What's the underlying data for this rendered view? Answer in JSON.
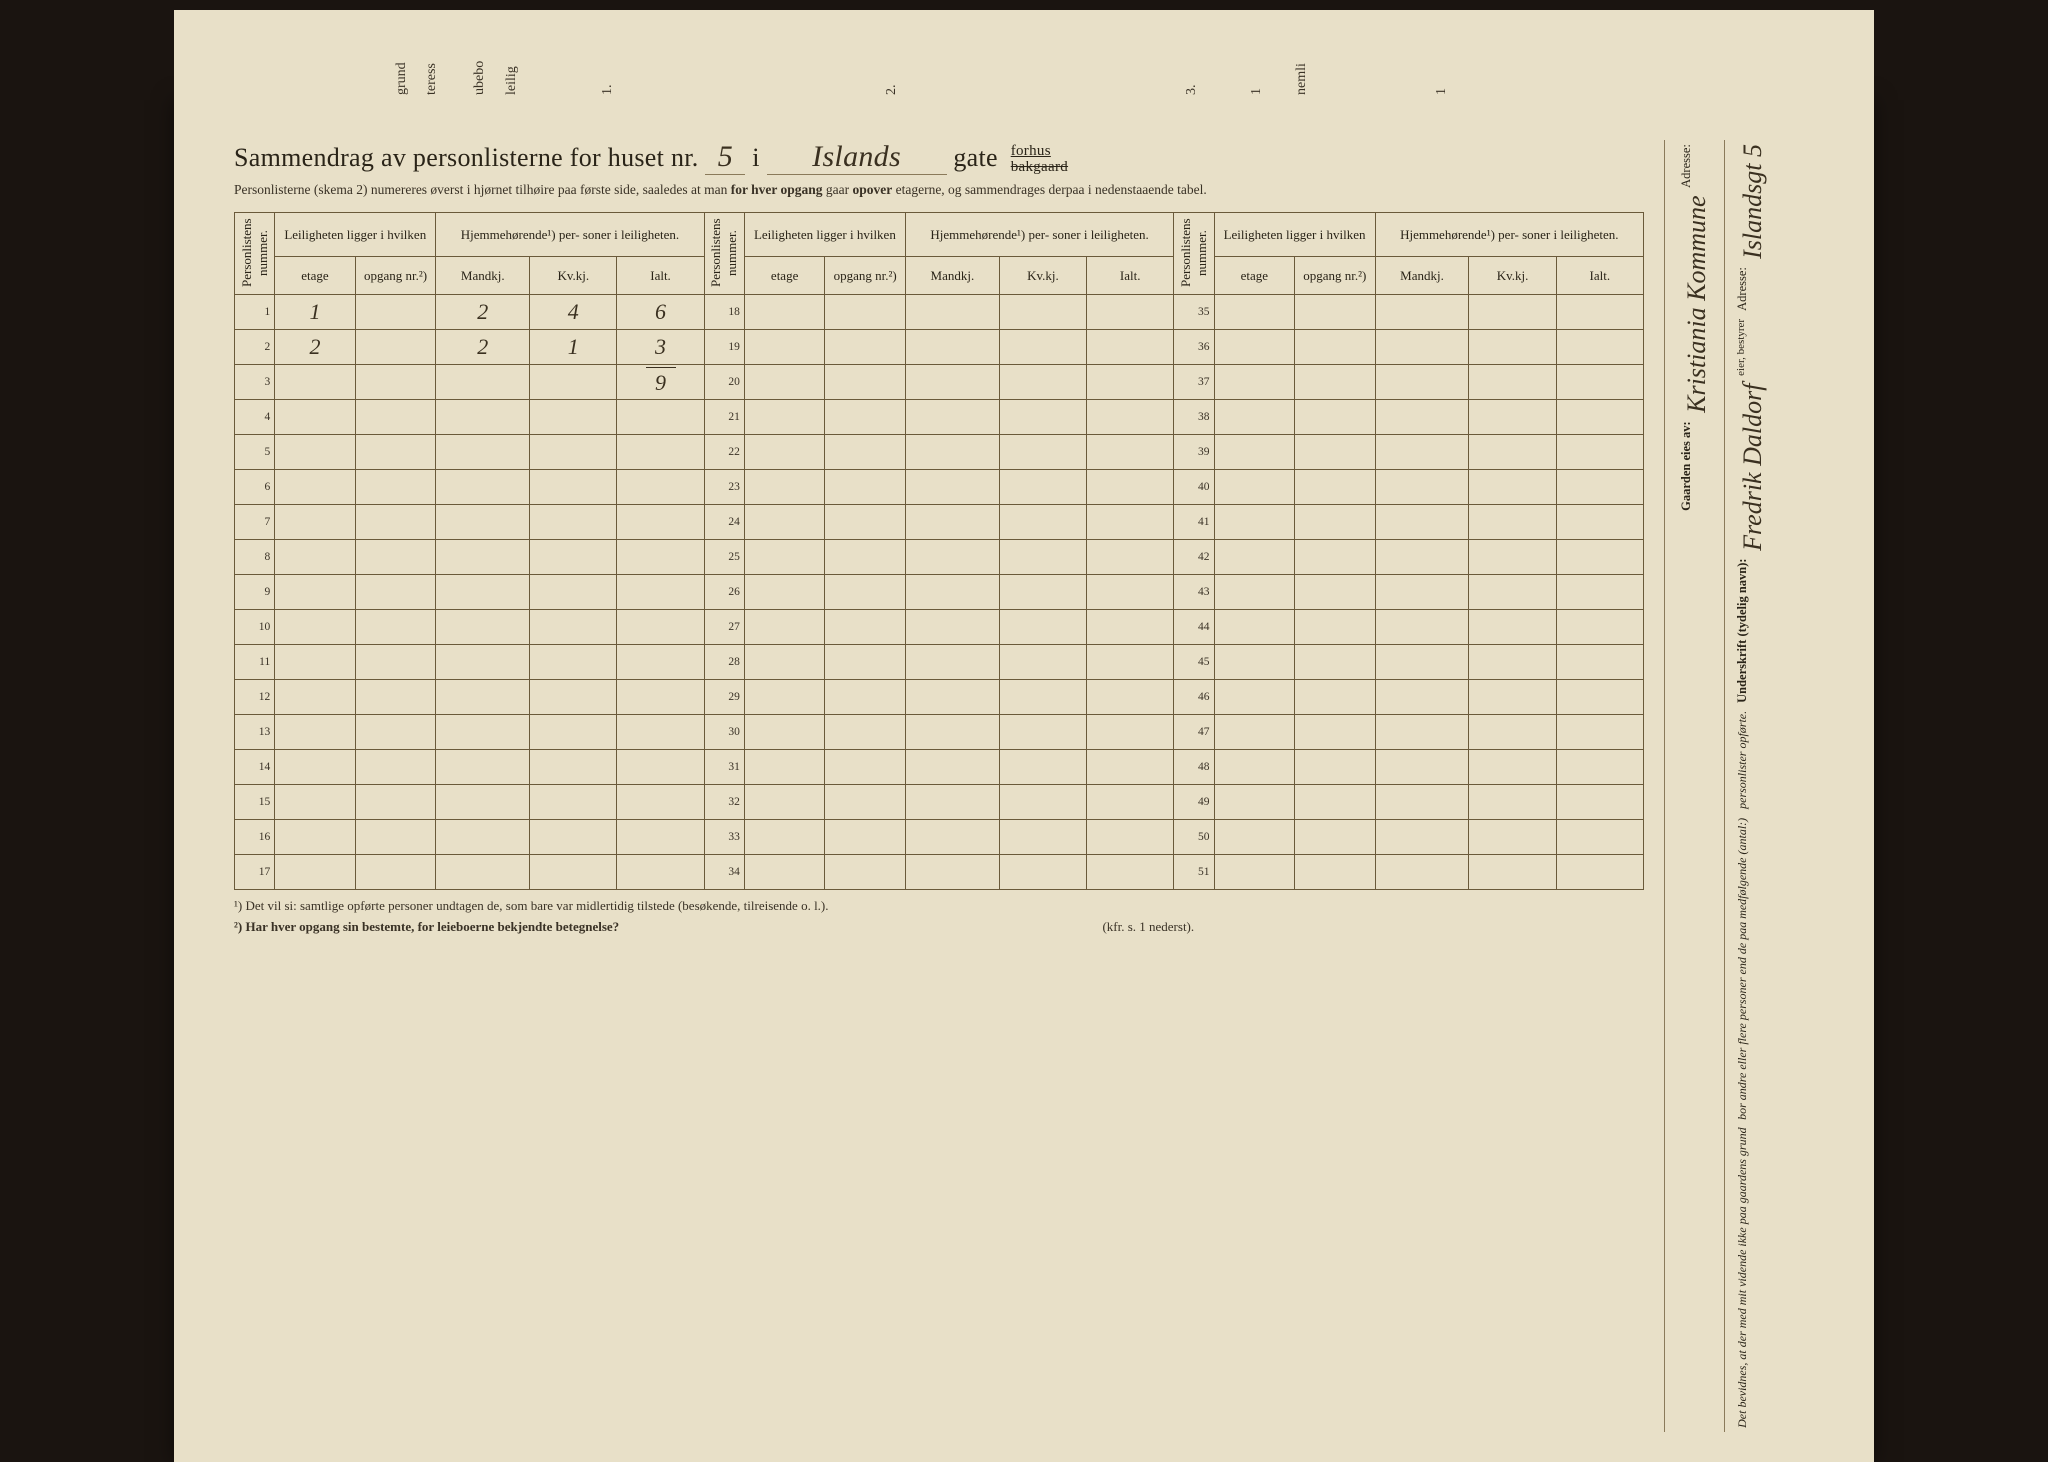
{
  "title": {
    "prefix": "Sammendrag av personlisterne for huset nr.",
    "house_no": "5",
    "mid": "i",
    "street": "Islands",
    "gate": "gate",
    "suffix_top": "forhus",
    "suffix_bottom": "bakgaard"
  },
  "subtitle": {
    "a": "Personlisterne (skema 2) numereres øverst i hjørnet tilhøire paa første side, saaledes at man ",
    "b": "for hver opgang",
    "c": " gaar ",
    "d": "opover",
    "e": " etagerne, og sammendrages derpaa i nedenstaaende tabel."
  },
  "headers": {
    "plnum": "Personlistens nummer.",
    "leil": "Leilighetenligger i hvilken",
    "hjem": "Hjemmehørende¹) personer i leilighten.",
    "leil_full": "Leiligheten ligger i hvilken",
    "hjem_full": "Hjemmehørende¹) per- soner i leiligheten.",
    "etage": "etage",
    "opgang": "opgang nr.²)",
    "mandkj": "Mandkj.",
    "kvkj": "Kv.kj.",
    "ialt": "Ialt."
  },
  "rows": [
    {
      "n": "1",
      "etage": "1",
      "opg": "",
      "m": "2",
      "k": "4",
      "i": "6"
    },
    {
      "n": "2",
      "etage": "2",
      "opg": "",
      "m": "2",
      "k": "1",
      "i": "3"
    },
    {
      "n": "3",
      "etage": "",
      "opg": "",
      "m": "",
      "k": "",
      "i": "9",
      "sum": true
    },
    {
      "n": "4"
    },
    {
      "n": "5"
    },
    {
      "n": "6"
    },
    {
      "n": "7"
    },
    {
      "n": "8"
    },
    {
      "n": "9"
    },
    {
      "n": "10"
    },
    {
      "n": "11"
    },
    {
      "n": "12"
    },
    {
      "n": "13"
    },
    {
      "n": "14"
    },
    {
      "n": "15"
    },
    {
      "n": "16"
    },
    {
      "n": "17"
    }
  ],
  "mid_nums": [
    "18",
    "19",
    "20",
    "21",
    "22",
    "23",
    "24",
    "25",
    "26",
    "27",
    "28",
    "29",
    "30",
    "31",
    "32",
    "33",
    "34"
  ],
  "right_nums": [
    "35",
    "36",
    "37",
    "38",
    "39",
    "40",
    "41",
    "42",
    "43",
    "44",
    "45",
    "46",
    "47",
    "48",
    "49",
    "50",
    "51"
  ],
  "footnotes": {
    "f1": "¹)  Det vil si: samtlige opførte personer undtagen de, som bare var midlertidig tilstede (besøkende, tilreisende o. l.).",
    "f2a": "²)  Har hver opgang sin bestemte, for leieboerne bekjendte betegnelse?",
    "f2b": "(kfr. s. 1 nederst)."
  },
  "side_right": {
    "attest_a": "Det bevidnes, at der med mit vidende ikke paa gaardens grund",
    "attest_b": "bor andre eller flere personer end de paa medfølgende (antal:)",
    "attest_c": "personlister opførte.",
    "sig_label": "Underskrift (tydelig navn):",
    "sig_name": "Fredrik Daldorf",
    "sig_role": "eier, bestyrer",
    "addr_label": "Adresse:",
    "addr_value": "Islandsgt 5"
  },
  "side_left": {
    "label": "Gaarden eies av:",
    "value": "Kristiania Kommune",
    "addr_label": "Adresse:"
  },
  "top_fragments": [
    "grund",
    "teress",
    "ubebo",
    "leilig",
    "1.",
    "2.",
    "3.",
    "1",
    "nemli",
    "1"
  ],
  "colors": {
    "paper": "#e8e0c8",
    "ink": "#2a2418",
    "rule": "#6a5a3a",
    "handwriting": "#3a3020"
  }
}
